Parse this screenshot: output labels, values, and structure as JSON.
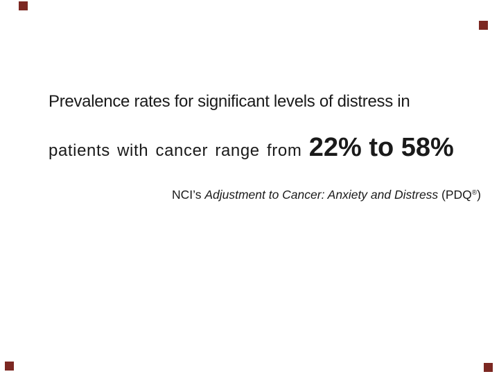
{
  "slide": {
    "statement": {
      "line1": "Prevalence rates for significant levels of distress in",
      "line2_prefix": "patients with cancer range from ",
      "line2_highlight": "22% to 58%"
    },
    "attribution": {
      "prefix": "NCI’s ",
      "italic_title": "Adjustment to Cancer: Anxiety and Distress",
      "suffix_open": " (PDQ",
      "registered_mark": "®",
      "suffix_close": ")"
    },
    "colors": {
      "background": "#ffffff",
      "text": "#1a1a1a",
      "corner_accent": "#7c2822"
    }
  }
}
